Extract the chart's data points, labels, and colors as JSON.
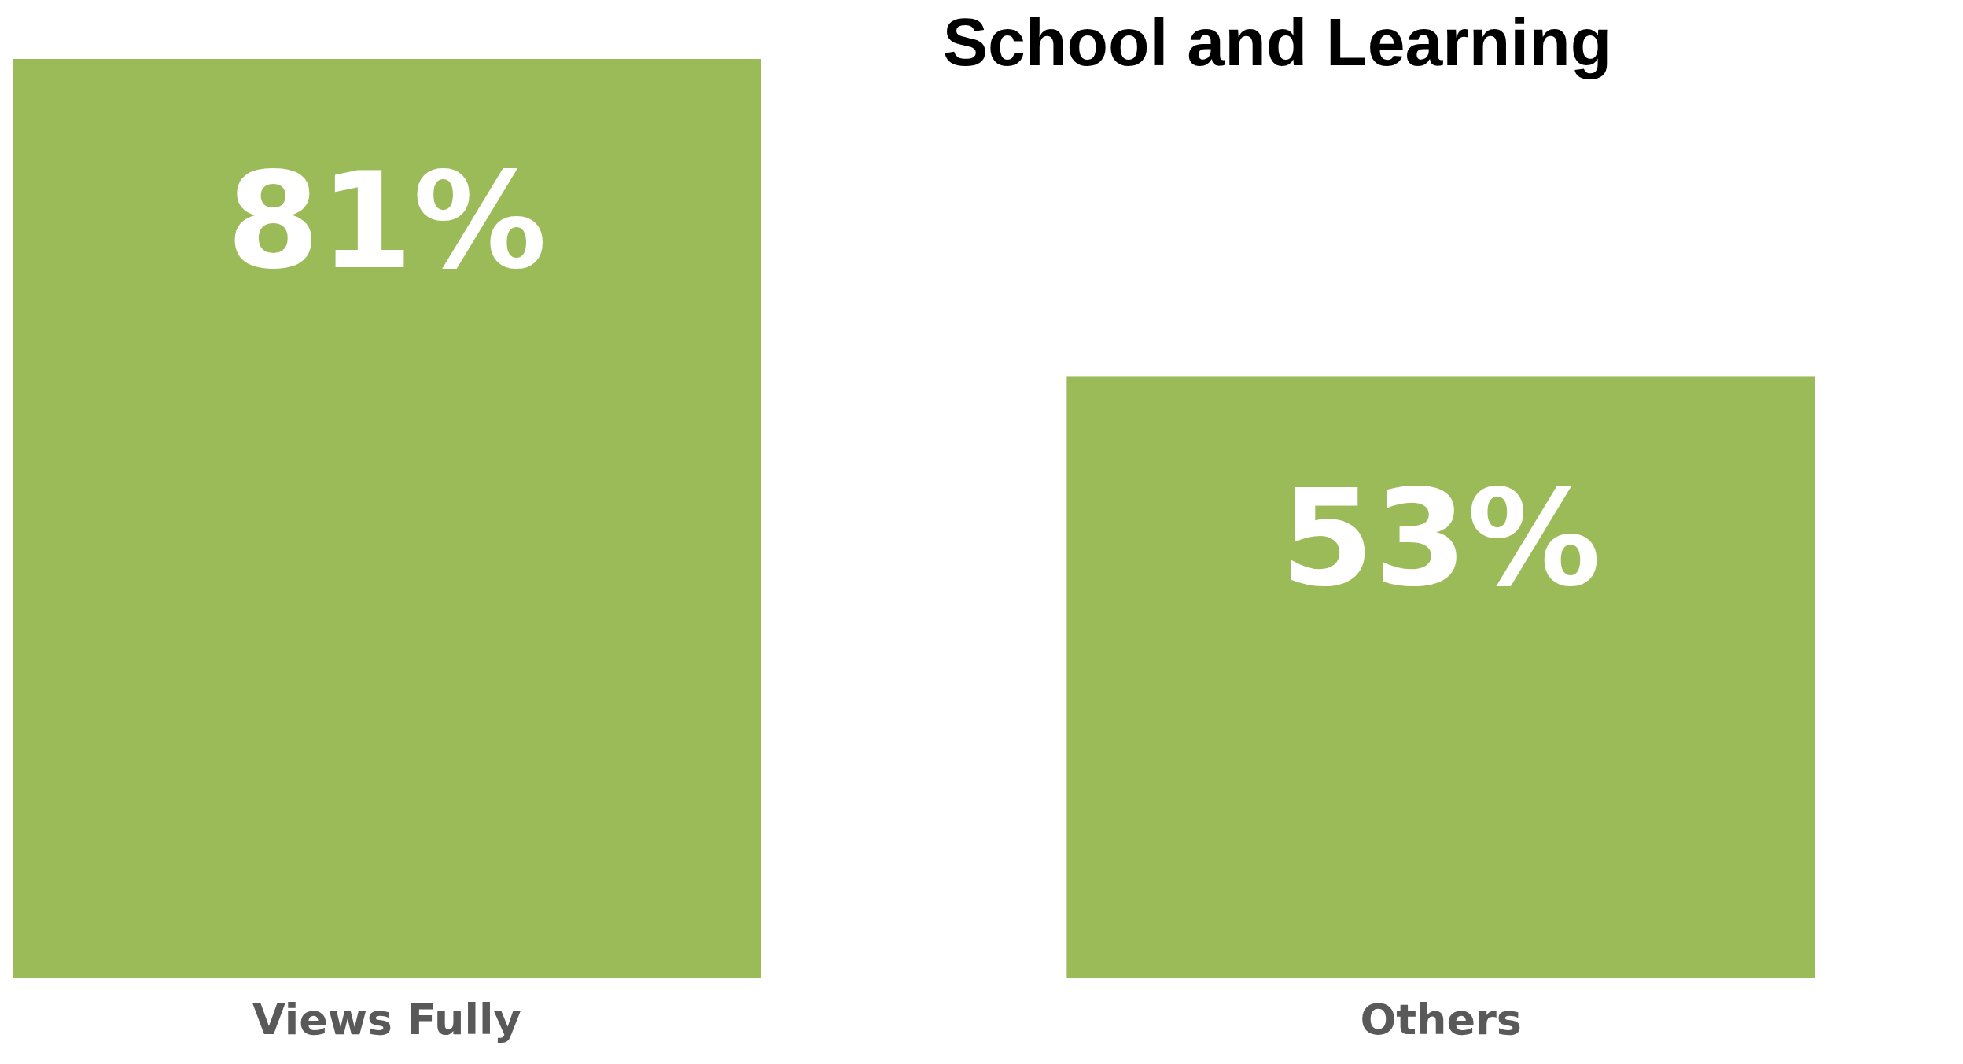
{
  "chart_data": {
    "type": "bar",
    "title": "School and Learning",
    "categories": [
      "Views Fully",
      "Others"
    ],
    "values": [
      81,
      53
    ],
    "color": "#9bbb59",
    "data_labels": true,
    "value_labels": [
      "81%",
      "53%"
    ]
  }
}
